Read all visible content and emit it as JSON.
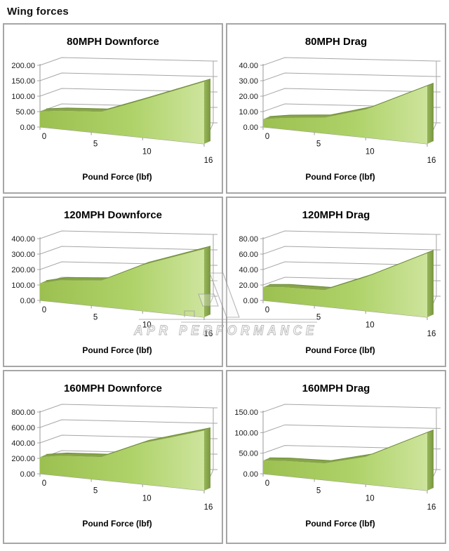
{
  "page": {
    "title": "Wing forces"
  },
  "watermark": {
    "text": "APR PERFORMANCE"
  },
  "colors": {
    "area_fill_start": "#9cc050",
    "area_fill_mid": "#aed268",
    "area_fill_end": "#cde49c",
    "area_ridge": "#87a548",
    "area_ridge_line": "#6c8a37",
    "area_side_start": "#97b65a",
    "area_side_end": "#7a9740",
    "gridline": "#a6a6a6",
    "axis": "#9a9a9a",
    "panel_border": "#a6a6a6",
    "watermark_gray": "#9c9c9c"
  },
  "chart_data": [
    {
      "type": "area",
      "title": "80MPH Downforce",
      "xlabel": "Pound Force (lbf)",
      "x": [
        0,
        2,
        6,
        10,
        16
      ],
      "values": [
        50,
        57,
        62,
        100,
        150
      ],
      "ylim": [
        0,
        200
      ],
      "yticks": [
        "0.00",
        "50.00",
        "100.00",
        "150.00",
        "200.00"
      ],
      "xticks": [
        0,
        5,
        10,
        16
      ],
      "grid": "on",
      "legend": "none",
      "style": "3d-area-green"
    },
    {
      "type": "area",
      "title": "80MPH Drag",
      "xlabel": "Pound Force (lbf)",
      "x": [
        0,
        2,
        6,
        10,
        16
      ],
      "values": [
        5,
        7,
        9,
        15,
        28
      ],
      "ylim": [
        0,
        40
      ],
      "yticks": [
        "0.00",
        "10.00",
        "20.00",
        "30.00",
        "40.00"
      ],
      "xticks": [
        0,
        5,
        10,
        16
      ],
      "grid": "on",
      "legend": "none",
      "style": "3d-area-green"
    },
    {
      "type": "area",
      "title": "120MPH Downforce",
      "xlabel": "Pound Force (lbf)",
      "x": [
        0,
        2,
        6,
        10,
        16
      ],
      "values": [
        110,
        138,
        150,
        245,
        330
      ],
      "ylim": [
        0,
        400
      ],
      "yticks": [
        "0.00",
        "100.00",
        "200.00",
        "300.00",
        "400.00"
      ],
      "xticks": [
        0,
        5,
        10,
        16
      ],
      "grid": "on",
      "legend": "none",
      "style": "3d-area-green"
    },
    {
      "type": "area",
      "title": "120MPH Drag",
      "xlabel": "Pound Force (lbf)",
      "x": [
        0,
        2,
        6,
        10,
        16
      ],
      "values": [
        17,
        19,
        19,
        36,
        62
      ],
      "ylim": [
        0,
        80
      ],
      "yticks": [
        "0.00",
        "20.00",
        "40.00",
        "60.00",
        "80.00"
      ],
      "xticks": [
        0,
        5,
        10,
        16
      ],
      "grid": "on",
      "legend": "none",
      "style": "3d-area-green"
    },
    {
      "type": "area",
      "title": "160MPH Downforce",
      "xlabel": "Pound Force (lbf)",
      "x": [
        0,
        2,
        6,
        10,
        16
      ],
      "values": [
        215,
        250,
        265,
        440,
        580
      ],
      "ylim": [
        0,
        800
      ],
      "yticks": [
        "0.00",
        "200.00",
        "400.00",
        "600.00",
        "800.00"
      ],
      "xticks": [
        0,
        5,
        10,
        16
      ],
      "grid": "on",
      "legend": "none",
      "style": "3d-area-green"
    },
    {
      "type": "area",
      "title": "160MPH Drag",
      "xlabel": "Pound Force (lbf)",
      "x": [
        0,
        2,
        6,
        10,
        16
      ],
      "values": [
        32,
        35,
        36,
        55,
        105
      ],
      "ylim": [
        0,
        150
      ],
      "yticks": [
        "0.00",
        "50.00",
        "100.00",
        "150.00"
      ],
      "xticks": [
        0,
        5,
        10,
        16
      ],
      "grid": "on",
      "legend": "none",
      "style": "3d-area-green"
    }
  ]
}
